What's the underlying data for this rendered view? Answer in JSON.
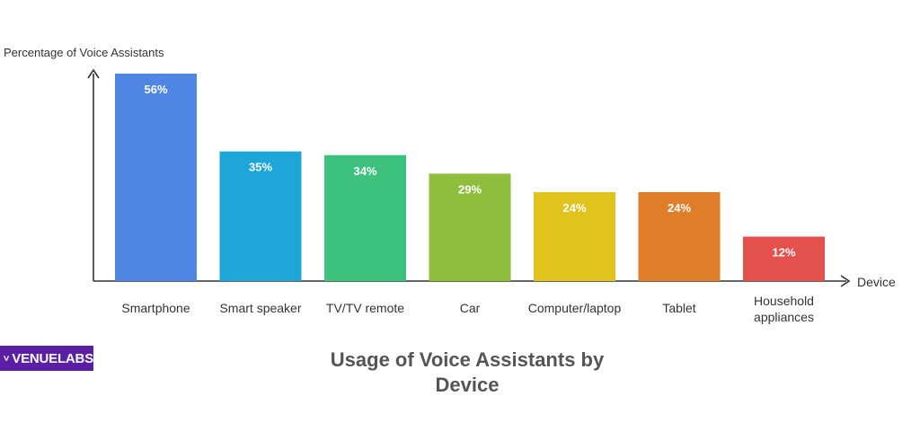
{
  "chart_data": {
    "type": "bar",
    "title": "Usage of Voice Assistants by Device",
    "ylabel": "Percentage of Voice Assistants",
    "xlabel": "Device",
    "ylim": [
      0,
      60
    ],
    "grid": false,
    "categories": [
      "Smartphone",
      "Smart speaker",
      "TV/TV remote",
      "Car",
      "Computer/laptop",
      "Tablet",
      "Household appliances"
    ],
    "values": [
      56,
      35,
      34,
      29,
      24,
      24,
      12
    ],
    "value_labels": [
      "56%",
      "35%",
      "34%",
      "29%",
      "24%",
      "24%",
      "12%"
    ],
    "colors": [
      "#4f86e4",
      "#1fa6d9",
      "#3cc27d",
      "#8fbd3c",
      "#e0c31d",
      "#e07d28",
      "#e4514d"
    ]
  },
  "logo": {
    "text": "VENUELABS",
    "color": "#5b1fa6"
  }
}
